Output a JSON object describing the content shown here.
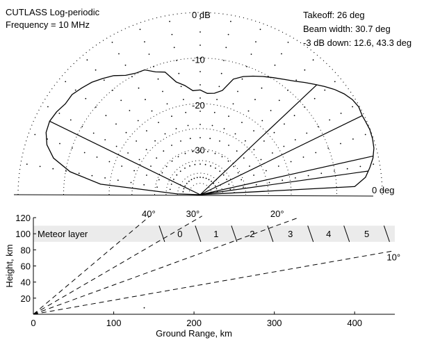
{
  "header": {
    "title_line1": "CUTLASS Log-periodic",
    "title_line2": "Frequency = 10 MHz"
  },
  "info": {
    "takeoff": "Takeoff: 26 deg",
    "beam_width": "Beam width: 30.7 deg",
    "down_3db": "-3 dB down: 12.6, 43.3 deg"
  },
  "chart_data": [
    {
      "type": "polar-line",
      "description_source": "radiation pattern",
      "ring_labels": [
        "0 dB",
        "-10",
        "-20",
        "-30"
      ],
      "ring_db": [
        0,
        -10,
        -20,
        -30
      ],
      "r_min_db": -40,
      "baseline_label": "0 deg",
      "beam_lines_deg": [
        12.6,
        26,
        43.3,
        154
      ],
      "series": [
        {
          "elevation_deg": [
            0,
            3,
            6,
            9,
            12,
            15,
            18,
            21,
            24,
            26,
            29,
            32,
            35,
            38,
            41,
            44,
            47,
            50,
            54,
            58,
            62,
            66,
            70,
            74,
            78,
            82,
            86,
            90,
            94,
            98,
            102,
            106,
            110,
            114,
            118,
            122,
            126,
            130,
            134,
            138,
            142,
            146,
            150,
            154,
            158,
            162,
            166,
            170,
            174,
            178,
            180
          ],
          "gain_db": [
            -40,
            -6,
            -3.5,
            -2.3,
            -1.2,
            -0.5,
            -0.2,
            -0.1,
            -0.3,
            -0.4,
            -0.2,
            -0.6,
            -1.4,
            -2.5,
            -3.8,
            -5.1,
            -6.3,
            -7.5,
            -8.7,
            -9.7,
            -10.6,
            -11.5,
            -12.4,
            -13.6,
            -16.6,
            -17.5,
            -17.7,
            -17.0,
            -17.1,
            -15.8,
            -14.7,
            -12.0,
            -11.3,
            -10.0,
            -9.8,
            -9.1,
            -7.7,
            -6.7,
            -5.7,
            -5.0,
            -4.3,
            -4.3,
            -3.6,
            -3.2,
            -3.5,
            -4.6,
            -6.8,
            -11.0,
            -18.0,
            -35.0,
            -40
          ]
        }
      ]
    },
    {
      "type": "line",
      "xlabel": "Ground Range, km",
      "ylabel": "Height, km",
      "xlim": [
        0,
        450
      ],
      "ylim": [
        0,
        120
      ],
      "x_ticks": [
        0,
        100,
        200,
        300,
        400
      ],
      "y_ticks": [
        20,
        40,
        60,
        80,
        100,
        120
      ],
      "meteor_layer": {
        "label": "Meteor layer",
        "y_range_km": [
          90,
          110
        ],
        "cell_labels": [
          "0",
          "1",
          "2",
          "3",
          "4",
          "5"
        ],
        "cell_bounds_km": [
          160,
          205,
          250,
          295,
          345,
          390,
          440
        ]
      },
      "series": [
        {
          "name": "40°",
          "x": [
            0,
            145
          ],
          "y": [
            0,
            122
          ]
        },
        {
          "name": "30°",
          "x": [
            0,
            210
          ],
          "y": [
            0,
            122
          ]
        },
        {
          "name": "20°",
          "x": [
            0,
            330
          ],
          "y": [
            0,
            120
          ]
        },
        {
          "name": "10°",
          "x": [
            0,
            450
          ],
          "y": [
            0,
            79
          ]
        }
      ],
      "ray_labels": [
        {
          "text": "40°",
          "x_km": 135,
          "y_km": 121
        },
        {
          "text": "30°",
          "x_km": 190,
          "y_km": 121
        },
        {
          "text": "20°",
          "x_km": 295,
          "y_km": 121
        },
        {
          "text": "10°",
          "x_km": 440,
          "y_km": 67
        }
      ],
      "stray_point": {
        "x": 138,
        "y": 8
      }
    }
  ]
}
